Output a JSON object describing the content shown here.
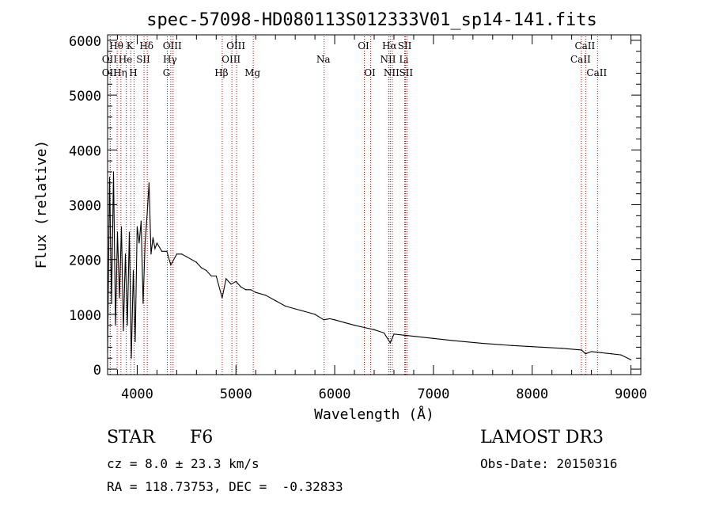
{
  "chart_data": {
    "type": "line",
    "title": "spec-57098-HD080113S012333V01_sp14-141.fits",
    "xlabel": "Wavelength (Å)",
    "ylabel": "Flux (relative)",
    "xlim": [
      3700,
      9100
    ],
    "ylim": [
      -100,
      6100
    ],
    "xticks": [
      4000,
      5000,
      6000,
      7000,
      8000,
      9000
    ],
    "yticks": [
      0,
      1000,
      2000,
      3000,
      4000,
      5000,
      6000
    ],
    "series": [
      {
        "name": "spectrum",
        "x": [
          3700,
          3720,
          3740,
          3760,
          3780,
          3800,
          3820,
          3840,
          3860,
          3880,
          3900,
          3920,
          3940,
          3960,
          3980,
          4000,
          4020,
          4040,
          4060,
          4080,
          4100,
          4120,
          4140,
          4160,
          4180,
          4200,
          4250,
          4300,
          4340,
          4400,
          4450,
          4500,
          4550,
          4600,
          4650,
          4700,
          4750,
          4800,
          4860,
          4900,
          4950,
          5000,
          5050,
          5100,
          5150,
          5200,
          5300,
          5400,
          5500,
          5600,
          5700,
          5800,
          5890,
          5950,
          6000,
          6100,
          6200,
          6300,
          6400,
          6500,
          6563,
          6600,
          6700,
          6800,
          7000,
          7200,
          7500,
          7800,
          8000,
          8300,
          8500,
          8540,
          8600,
          8700,
          8800,
          8900,
          9000
        ],
        "y": [
          300,
          3500,
          1200,
          3600,
          800,
          2500,
          1300,
          2600,
          700,
          2100,
          800,
          2500,
          200,
          1800,
          500,
          2600,
          2300,
          2700,
          1200,
          2300,
          2800,
          3400,
          2100,
          2400,
          2200,
          2300,
          2150,
          2150,
          1900,
          2100,
          2100,
          2050,
          2000,
          1950,
          1850,
          1800,
          1700,
          1700,
          1300,
          1650,
          1550,
          1600,
          1500,
          1450,
          1450,
          1400,
          1350,
          1250,
          1150,
          1100,
          1050,
          1000,
          900,
          920,
          900,
          850,
          800,
          760,
          720,
          660,
          480,
          640,
          620,
          600,
          560,
          520,
          470,
          430,
          410,
          380,
          350,
          280,
          320,
          300,
          280,
          260,
          170
        ]
      }
    ],
    "lines": [
      {
        "label": "Hθ",
        "x": 3797,
        "row": 0
      },
      {
        "label": "OII",
        "x": 3727,
        "row": 1
      },
      {
        "label": "OII",
        "x": 3727,
        "row": 2
      },
      {
        "label": "He",
        "x": 3889,
        "row": 1
      },
      {
        "label": "Hη",
        "x": 3835,
        "row": 2
      },
      {
        "label": "K",
        "x": 3934,
        "row": 0
      },
      {
        "label": "H",
        "x": 3968,
        "row": 2
      },
      {
        "label": "SII",
        "x": 4069,
        "row": 1
      },
      {
        "label": "Hδ",
        "x": 4102,
        "row": 0
      },
      {
        "label": "OIII",
        "x": 4363,
        "row": 0
      },
      {
        "label": "Hγ",
        "x": 4340,
        "row": 1
      },
      {
        "label": "G",
        "x": 4305,
        "row": 2
      },
      {
        "label": "OIII",
        "x": 5007,
        "row": 0
      },
      {
        "label": "OIII",
        "x": 4959,
        "row": 1
      },
      {
        "label": "Hβ",
        "x": 4861,
        "row": 2
      },
      {
        "label": "Mg",
        "x": 5175,
        "row": 2
      },
      {
        "label": "Na",
        "x": 5893,
        "row": 1
      },
      {
        "label": "OI",
        "x": 6300,
        "row": 0
      },
      {
        "label": "OI",
        "x": 6364,
        "row": 2
      },
      {
        "label": "Hα",
        "x": 6563,
        "row": 0
      },
      {
        "label": "NII",
        "x": 6548,
        "row": 1
      },
      {
        "label": "NII",
        "x": 6583,
        "row": 2
      },
      {
        "label": "SII",
        "x": 6717,
        "row": 0
      },
      {
        "label": "Li",
        "x": 6708,
        "row": 1
      },
      {
        "label": "SII",
        "x": 6731,
        "row": 2
      },
      {
        "label": "CaII",
        "x": 8542,
        "row": 0
      },
      {
        "label": "CaII",
        "x": 8498,
        "row": 1
      },
      {
        "label": "CaII",
        "x": 8662,
        "row": 2
      }
    ]
  },
  "info": {
    "object_class": "STAR",
    "subclass": "F6",
    "survey": "LAMOST DR3",
    "redshift": "cz = 8.0 ± 23.3 km/s",
    "obs_date": "Obs-Date: 20150316",
    "coords": "RA = 118.73753, DEC =  -0.32833"
  }
}
